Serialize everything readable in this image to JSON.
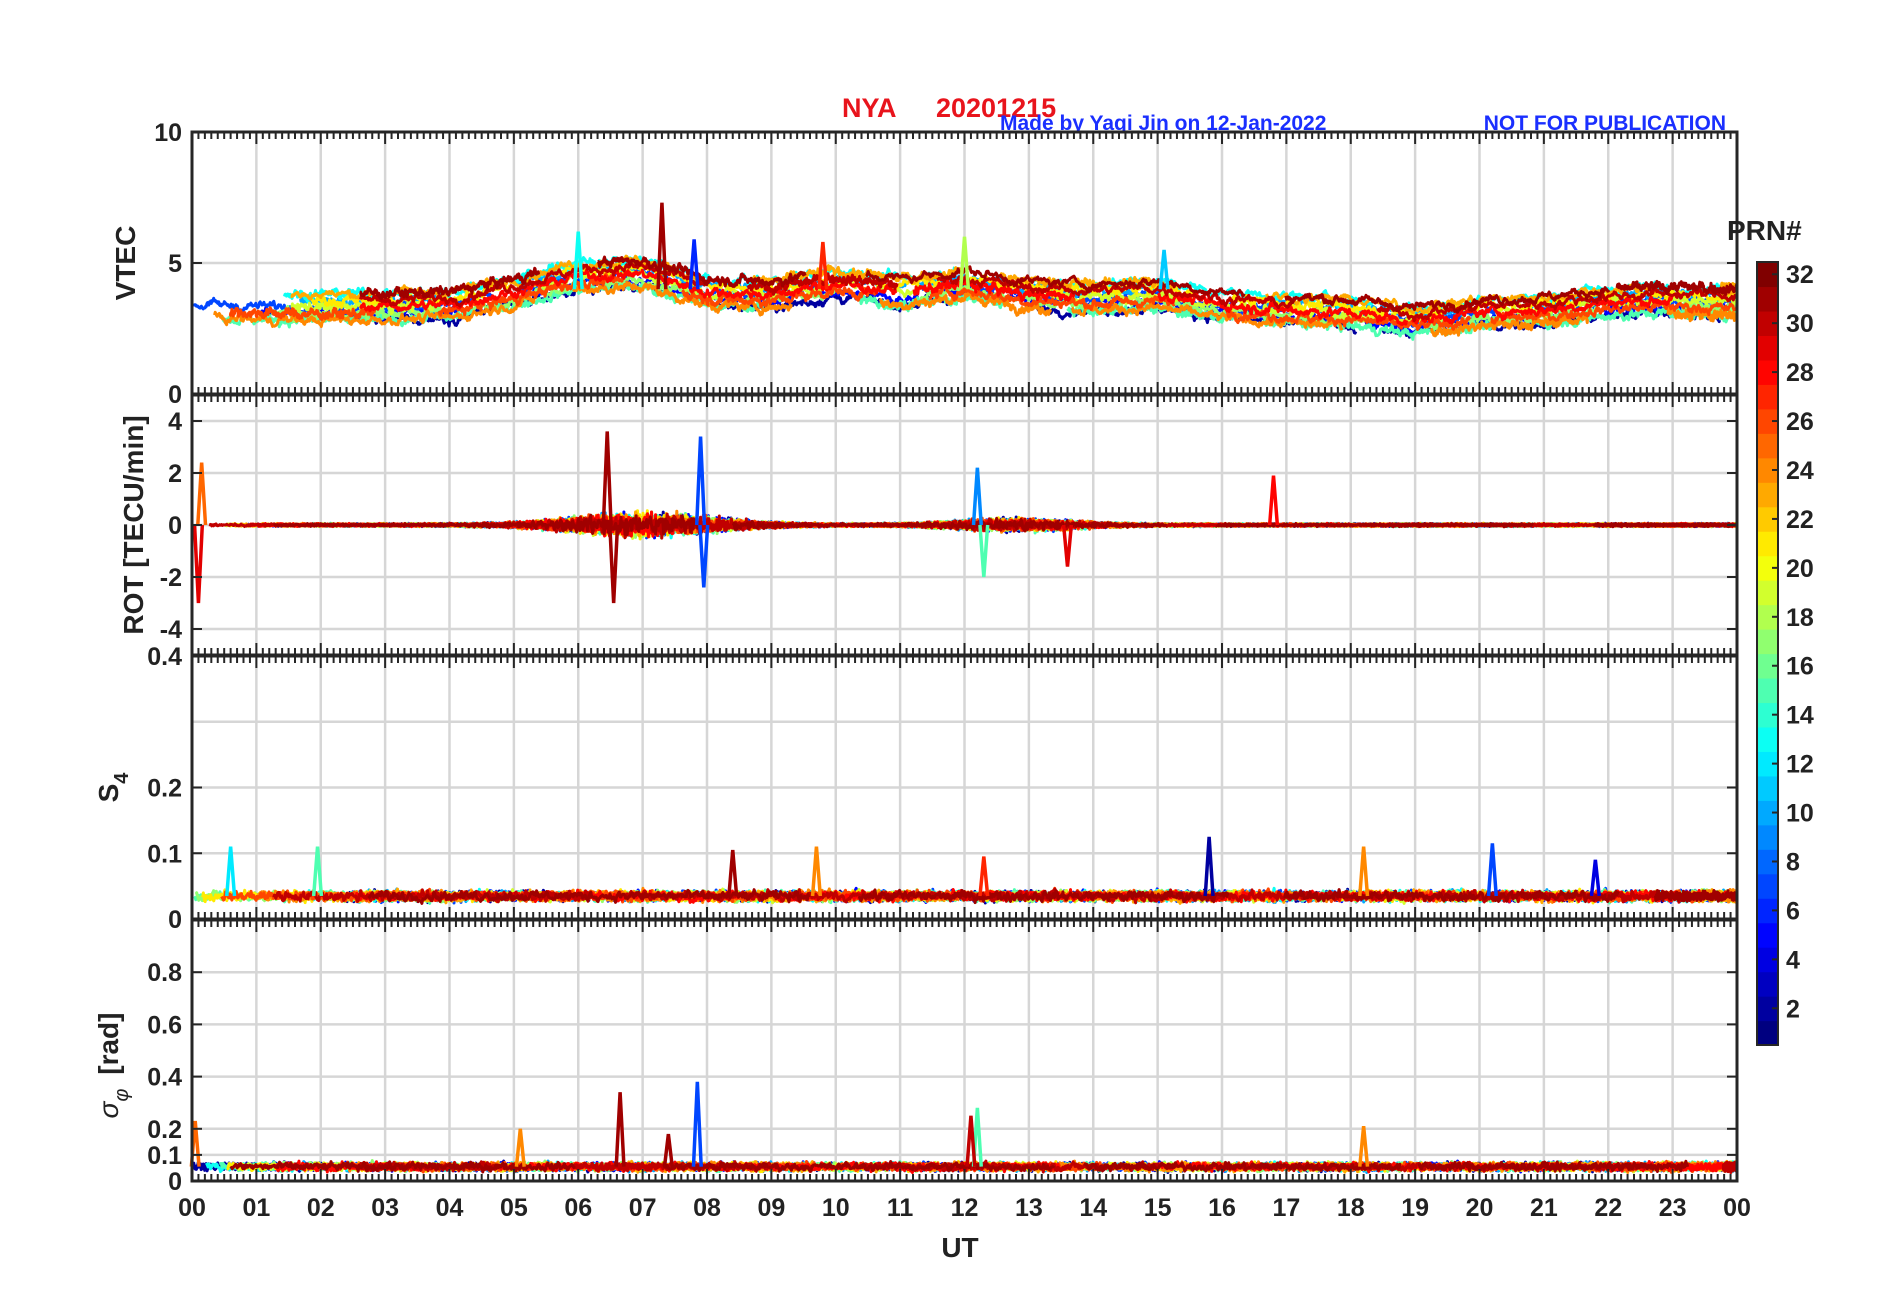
{
  "header": {
    "station": "NYA",
    "date": "20201215",
    "credit": "Made by Yaqi Jin on 12-Jan-2022",
    "notice": "NOT FOR PUBLICATION",
    "title_color": "#e8141c",
    "credit_color": "#1a2fff"
  },
  "chart_data": {
    "type": "line",
    "x": {
      "label": "UT",
      "range": [
        0,
        24
      ],
      "unit": "hours",
      "tick_labels": [
        "00",
        "01",
        "02",
        "03",
        "04",
        "05",
        "06",
        "07",
        "08",
        "09",
        "10",
        "11",
        "12",
        "13",
        "14",
        "15",
        "16",
        "17",
        "18",
        "19",
        "20",
        "21",
        "22",
        "23",
        "00"
      ]
    },
    "grid": true,
    "panels": [
      {
        "id": "vtec",
        "ylabel": "VTEC",
        "ylim": [
          0,
          10
        ],
        "yticks": [
          0,
          5,
          10
        ],
        "ytick_labels": [
          "0",
          "5",
          "10"
        ],
        "baseline_profile": [
          [
            0,
            3.4
          ],
          [
            2,
            3.3
          ],
          [
            4,
            3.4
          ],
          [
            5,
            3.9
          ],
          [
            6,
            4.5
          ],
          [
            7,
            4.6
          ],
          [
            8,
            3.9
          ],
          [
            9,
            3.8
          ],
          [
            10,
            4.2
          ],
          [
            11,
            3.9
          ],
          [
            12,
            4.2
          ],
          [
            13,
            3.8
          ],
          [
            14,
            3.7
          ],
          [
            15,
            3.8
          ],
          [
            16,
            3.4
          ],
          [
            17,
            3.2
          ],
          [
            18,
            3.1
          ],
          [
            19,
            2.8
          ],
          [
            20,
            3.1
          ],
          [
            21,
            3.2
          ],
          [
            22,
            3.5
          ],
          [
            23,
            3.6
          ],
          [
            24,
            3.5
          ]
        ],
        "events": [
          {
            "t": 7.3,
            "value": 7.3,
            "prn": 31
          },
          {
            "t": 7.8,
            "value": 5.9,
            "prn": 6
          },
          {
            "t": 6.0,
            "value": 6.2,
            "prn": 13
          },
          {
            "t": 12.0,
            "value": 6.0,
            "prn": 18
          },
          {
            "t": 15.1,
            "value": 5.5,
            "prn": 11
          },
          {
            "t": 9.8,
            "value": 5.8,
            "prn": 27
          }
        ]
      },
      {
        "id": "rot",
        "ylabel": "ROT [TECU/min]",
        "ylim": [
          -5,
          5
        ],
        "yticks": [
          -4,
          -2,
          0,
          2,
          4
        ],
        "ytick_labels": [
          "-4",
          "-2",
          "0",
          "2",
          "4"
        ],
        "events": [
          {
            "t": 6.45,
            "value": 3.6,
            "prn": 31
          },
          {
            "t": 6.55,
            "value": -3.0,
            "prn": 31
          },
          {
            "t": 7.9,
            "value": 3.4,
            "prn": 7
          },
          {
            "t": 7.95,
            "value": -2.4,
            "prn": 7
          },
          {
            "t": 0.1,
            "value": -3.0,
            "prn": 29
          },
          {
            "t": 0.15,
            "value": 2.4,
            "prn": 25
          },
          {
            "t": 12.2,
            "value": 2.2,
            "prn": 9
          },
          {
            "t": 12.3,
            "value": -2.0,
            "prn": 15
          },
          {
            "t": 16.8,
            "value": 1.9,
            "prn": 28
          },
          {
            "t": 13.6,
            "value": -1.6,
            "prn": 29
          }
        ]
      },
      {
        "id": "s4",
        "ylabel": "S4",
        "ylim": [
          0,
          0.4
        ],
        "yticks": [
          0,
          0.1,
          0.2,
          0.4
        ],
        "ytick_labels": [
          "0",
          "0.1",
          "0.2",
          "0.4"
        ],
        "events": [
          {
            "t": 15.8,
            "value": 0.125,
            "prn": 2
          },
          {
            "t": 20.2,
            "value": 0.115,
            "prn": 7
          },
          {
            "t": 1.95,
            "value": 0.11,
            "prn": 15
          },
          {
            "t": 0.6,
            "value": 0.11,
            "prn": 12
          },
          {
            "t": 9.7,
            "value": 0.11,
            "prn": 24
          },
          {
            "t": 8.4,
            "value": 0.105,
            "prn": 31
          },
          {
            "t": 18.2,
            "value": 0.11,
            "prn": 24
          },
          {
            "t": 21.8,
            "value": 0.09,
            "prn": 4
          },
          {
            "t": 12.3,
            "value": 0.095,
            "prn": 27
          }
        ]
      },
      {
        "id": "sigphi",
        "ylabel": "σφ [rad]",
        "ylim": [
          0,
          1.0
        ],
        "yticks": [
          0,
          0.1,
          0.2,
          0.4,
          0.6,
          0.8
        ],
        "ytick_labels": [
          "0",
          "0.1",
          "0.2",
          "0.4",
          "0.6",
          "0.8"
        ],
        "events": [
          {
            "t": 7.85,
            "value": 0.38,
            "prn": 7
          },
          {
            "t": 6.65,
            "value": 0.34,
            "prn": 31
          },
          {
            "t": 12.2,
            "value": 0.28,
            "prn": 15
          },
          {
            "t": 12.1,
            "value": 0.25,
            "prn": 30
          },
          {
            "t": 0.05,
            "value": 0.23,
            "prn": 25
          },
          {
            "t": 18.2,
            "value": 0.21,
            "prn": 24
          },
          {
            "t": 7.4,
            "value": 0.18,
            "prn": 31
          },
          {
            "t": 5.1,
            "value": 0.2,
            "prn": 24
          }
        ]
      }
    ],
    "colorbar": {
      "label": "PRN#",
      "range": [
        1,
        32
      ],
      "colormap": "jet",
      "ticks": [
        2,
        4,
        6,
        8,
        10,
        12,
        14,
        16,
        18,
        20,
        22,
        24,
        26,
        28,
        30,
        32
      ],
      "tick_labels": [
        "2",
        "4",
        "6",
        "8",
        "10",
        "12",
        "14",
        "16",
        "18",
        "20",
        "22",
        "24",
        "26",
        "28",
        "30",
        "32"
      ]
    }
  }
}
